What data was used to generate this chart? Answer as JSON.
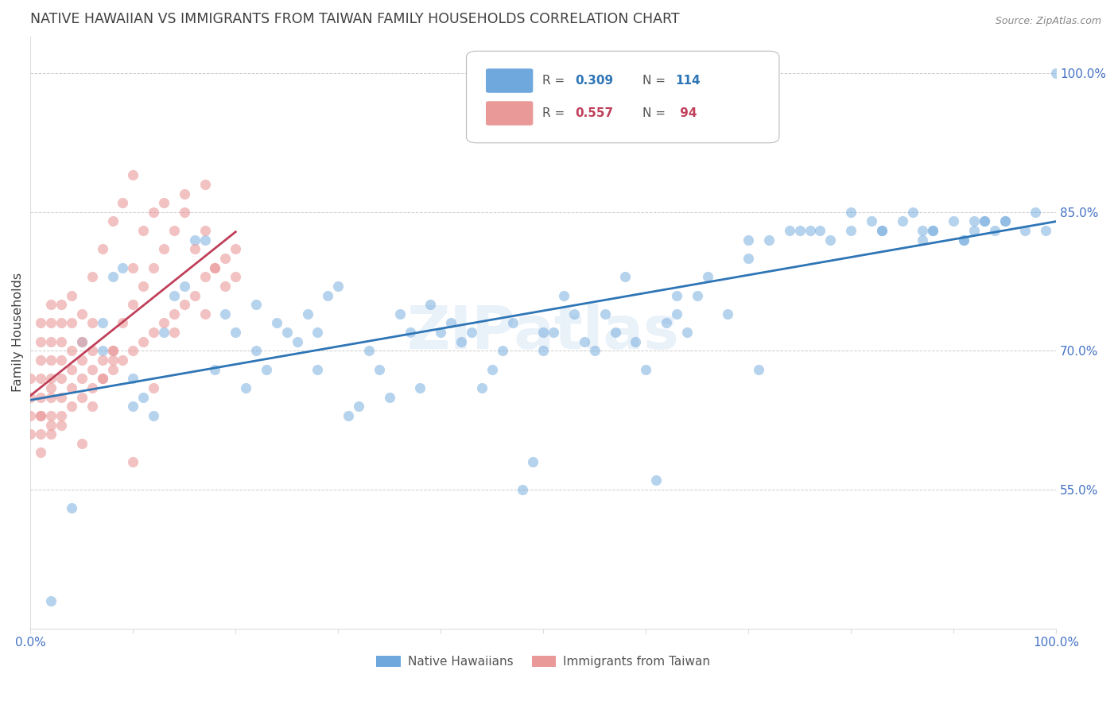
{
  "title": "NATIVE HAWAIIAN VS IMMIGRANTS FROM TAIWAN FAMILY HOUSEHOLDS CORRELATION CHART",
  "source": "Source: ZipAtlas.com",
  "ylabel": "Family Households",
  "right_yticks": [
    0.55,
    0.7,
    0.85,
    1.0
  ],
  "right_ytick_labels": [
    "55.0%",
    "70.0%",
    "85.0%",
    "100.0%"
  ],
  "blue_color": "#6fa8dc",
  "pink_color": "#ea9999",
  "blue_line_color": "#2e75b6",
  "pink_line_color": "#c0405a",
  "grid_color": "#cccccc",
  "title_color": "#404040",
  "right_tick_color": "#4472c4",
  "bottom_tick_color": "#4472c4",
  "source_color": "#888888",
  "watermark": "ZIPatlas",
  "xlim": [
    0.0,
    1.0
  ],
  "ylim": [
    0.4,
    1.04
  ],
  "blue_scatter_x": [
    0.02,
    0.04,
    0.05,
    0.07,
    0.08,
    0.09,
    0.1,
    0.1,
    0.11,
    0.12,
    0.13,
    0.14,
    0.15,
    0.16,
    0.17,
    0.18,
    0.19,
    0.2,
    0.21,
    0.22,
    0.23,
    0.24,
    0.25,
    0.26,
    0.27,
    0.28,
    0.29,
    0.3,
    0.31,
    0.32,
    0.33,
    0.34,
    0.35,
    0.36,
    0.37,
    0.38,
    0.39,
    0.4,
    0.41,
    0.42,
    0.43,
    0.44,
    0.45,
    0.46,
    0.47,
    0.48,
    0.49,
    0.5,
    0.5,
    0.51,
    0.52,
    0.53,
    0.54,
    0.55,
    0.56,
    0.57,
    0.58,
    0.59,
    0.6,
    0.61,
    0.62,
    0.63,
    0.64,
    0.65,
    0.66,
    0.68,
    0.7,
    0.71,
    0.72,
    0.74,
    0.75,
    0.76,
    0.77,
    0.78,
    0.8,
    0.82,
    0.83,
    0.85,
    0.86,
    0.87,
    0.88,
    0.9,
    0.91,
    0.92,
    0.93,
    0.95,
    0.97,
    0.98,
    0.99,
    1.0,
    0.07,
    0.22,
    0.28,
    0.63,
    0.7,
    0.8,
    0.83,
    0.87,
    0.88,
    0.91,
    0.92,
    0.93,
    0.94,
    0.95
  ],
  "blue_scatter_y": [
    0.43,
    0.53,
    0.71,
    0.7,
    0.78,
    0.79,
    0.67,
    0.64,
    0.65,
    0.63,
    0.72,
    0.76,
    0.77,
    0.82,
    0.82,
    0.68,
    0.74,
    0.72,
    0.66,
    0.75,
    0.68,
    0.73,
    0.72,
    0.71,
    0.74,
    0.72,
    0.76,
    0.77,
    0.63,
    0.64,
    0.7,
    0.68,
    0.65,
    0.74,
    0.72,
    0.66,
    0.75,
    0.72,
    0.73,
    0.71,
    0.72,
    0.66,
    0.68,
    0.7,
    0.73,
    0.55,
    0.58,
    0.7,
    0.72,
    0.72,
    0.76,
    0.74,
    0.71,
    0.7,
    0.74,
    0.72,
    0.78,
    0.71,
    0.68,
    0.56,
    0.73,
    0.76,
    0.72,
    0.76,
    0.78,
    0.74,
    0.8,
    0.68,
    0.82,
    0.83,
    0.83,
    0.83,
    0.83,
    0.82,
    0.83,
    0.84,
    0.83,
    0.84,
    0.85,
    0.82,
    0.83,
    0.84,
    0.82,
    0.84,
    0.84,
    0.84,
    0.83,
    0.85,
    0.83,
    1.0,
    0.73,
    0.7,
    0.68,
    0.74,
    0.82,
    0.85,
    0.83,
    0.83,
    0.83,
    0.82,
    0.83,
    0.84,
    0.83,
    0.84
  ],
  "pink_scatter_x": [
    0.0,
    0.0,
    0.0,
    0.0,
    0.01,
    0.01,
    0.01,
    0.01,
    0.01,
    0.01,
    0.01,
    0.01,
    0.01,
    0.02,
    0.02,
    0.02,
    0.02,
    0.02,
    0.02,
    0.02,
    0.02,
    0.02,
    0.02,
    0.03,
    0.03,
    0.03,
    0.03,
    0.03,
    0.03,
    0.03,
    0.04,
    0.04,
    0.04,
    0.04,
    0.04,
    0.04,
    0.05,
    0.05,
    0.05,
    0.05,
    0.05,
    0.06,
    0.06,
    0.06,
    0.06,
    0.06,
    0.07,
    0.07,
    0.07,
    0.08,
    0.08,
    0.08,
    0.09,
    0.09,
    0.1,
    0.1,
    0.1,
    0.11,
    0.11,
    0.12,
    0.12,
    0.13,
    0.13,
    0.14,
    0.15,
    0.15,
    0.16,
    0.17,
    0.17,
    0.18,
    0.19,
    0.2,
    0.07,
    0.08,
    0.09,
    0.1,
    0.11,
    0.12,
    0.13,
    0.14,
    0.15,
    0.16,
    0.17,
    0.18,
    0.19,
    0.2,
    0.03,
    0.05,
    0.06,
    0.08,
    0.1,
    0.12,
    0.14,
    0.17
  ],
  "pink_scatter_y": [
    0.61,
    0.63,
    0.65,
    0.67,
    0.59,
    0.61,
    0.63,
    0.65,
    0.67,
    0.69,
    0.71,
    0.73,
    0.63,
    0.61,
    0.63,
    0.65,
    0.66,
    0.67,
    0.69,
    0.71,
    0.73,
    0.75,
    0.62,
    0.63,
    0.65,
    0.67,
    0.69,
    0.71,
    0.73,
    0.75,
    0.64,
    0.66,
    0.68,
    0.7,
    0.73,
    0.76,
    0.65,
    0.67,
    0.69,
    0.71,
    0.74,
    0.66,
    0.68,
    0.7,
    0.73,
    0.78,
    0.67,
    0.69,
    0.81,
    0.68,
    0.7,
    0.84,
    0.69,
    0.86,
    0.7,
    0.79,
    0.89,
    0.71,
    0.83,
    0.72,
    0.85,
    0.73,
    0.86,
    0.74,
    0.75,
    0.87,
    0.76,
    0.78,
    0.88,
    0.79,
    0.8,
    0.81,
    0.67,
    0.69,
    0.73,
    0.75,
    0.77,
    0.79,
    0.81,
    0.83,
    0.85,
    0.81,
    0.83,
    0.79,
    0.77,
    0.78,
    0.62,
    0.6,
    0.64,
    0.7,
    0.58,
    0.66,
    0.72,
    0.74
  ]
}
